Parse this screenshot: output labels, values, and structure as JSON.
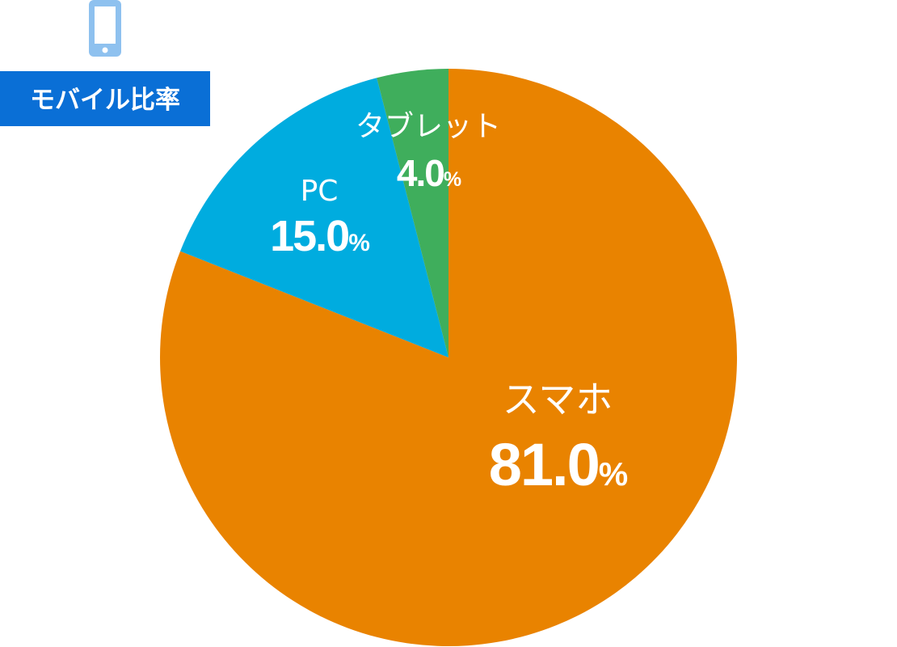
{
  "chart_data": {
    "type": "pie",
    "title": "モバイル比率",
    "categories": [
      "スマホ",
      "PC",
      "タブレット"
    ],
    "values": [
      81,
      15,
      4
    ],
    "value_labels": [
      "81.0%",
      "15.0%",
      "4.0%"
    ],
    "colors": [
      "#e98300",
      "#00acdf",
      "#3fae5c"
    ]
  }
}
